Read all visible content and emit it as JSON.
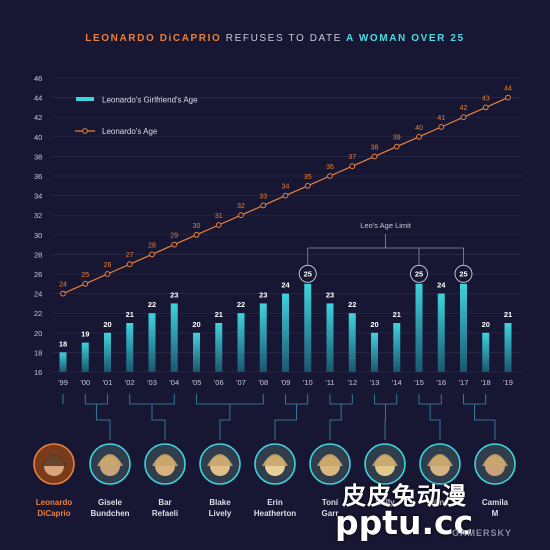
{
  "title": {
    "part1": "LEONARDO DiCAPRIO",
    "part2": "REFUSES TO DATE",
    "part3": "A WOMAN OVER 25"
  },
  "colors": {
    "background": "#171733",
    "age_line": "#e8803a",
    "bar": "#3fd3dd",
    "text": "#c9c9d8",
    "grid": "#2b2b4a"
  },
  "chart_data": {
    "type": "bar",
    "categories": [
      "'99",
      "'00",
      "'01",
      "'02",
      "'03",
      "'04",
      "'05",
      "'06",
      "'07",
      "'08",
      "'09",
      "'10",
      "'11",
      "'12",
      "'13",
      "'14",
      "'15",
      "'16",
      "'17",
      "'18",
      "'19"
    ],
    "ylim": [
      16,
      46
    ],
    "yticks": [
      16,
      18,
      20,
      22,
      24,
      26,
      28,
      30,
      32,
      34,
      36,
      38,
      40,
      42,
      44,
      46
    ],
    "grid": true,
    "legend_position": "top-left",
    "series": [
      {
        "name": "Leonardo's Girlfriend's Age",
        "type": "bar",
        "values": [
          18,
          19,
          20,
          21,
          22,
          23,
          20,
          21,
          22,
          23,
          24,
          25,
          23,
          22,
          20,
          21,
          25,
          24,
          25,
          20,
          21
        ]
      },
      {
        "name": "Leonardo's Age",
        "type": "line",
        "values": [
          24,
          25,
          26,
          27,
          28,
          29,
          30,
          31,
          32,
          33,
          34,
          35,
          36,
          37,
          38,
          39,
          40,
          41,
          42,
          43,
          44
        ]
      }
    ],
    "annotation": {
      "text": "Leo's Age Limit",
      "value": 25,
      "highlighted_years": [
        "'10",
        "'15",
        "'17"
      ]
    }
  },
  "people": [
    {
      "name": "Leonardo DiCaprio",
      "line1": "Leonardo",
      "line2": "DiCaprio",
      "highlight": true
    },
    {
      "name": "Gisele Bundchen",
      "line1": "Gisele",
      "line2": "Bundchen"
    },
    {
      "name": "Bar Refaeli",
      "line1": "Bar",
      "line2": "Refaeli"
    },
    {
      "name": "Blake Lively",
      "line1": "Blake",
      "line2": "Lively"
    },
    {
      "name": "Erin Heatherton",
      "line1": "Erin",
      "line2": "Heatherton"
    },
    {
      "name": "Toni Garrn",
      "line1": "Toni",
      "line2": "Garr"
    },
    {
      "name": "Kelly",
      "line1": "Kelly",
      "line2": ""
    },
    {
      "name": "Nina",
      "line1": "Nina",
      "line2": ""
    },
    {
      "name": "Camila M",
      "line1": "Camila",
      "line2": "M"
    }
  ],
  "watermark": {
    "line1": "皮皮兔动漫",
    "line2": "pptu.cc",
    "line3": "GAMERSKY"
  }
}
